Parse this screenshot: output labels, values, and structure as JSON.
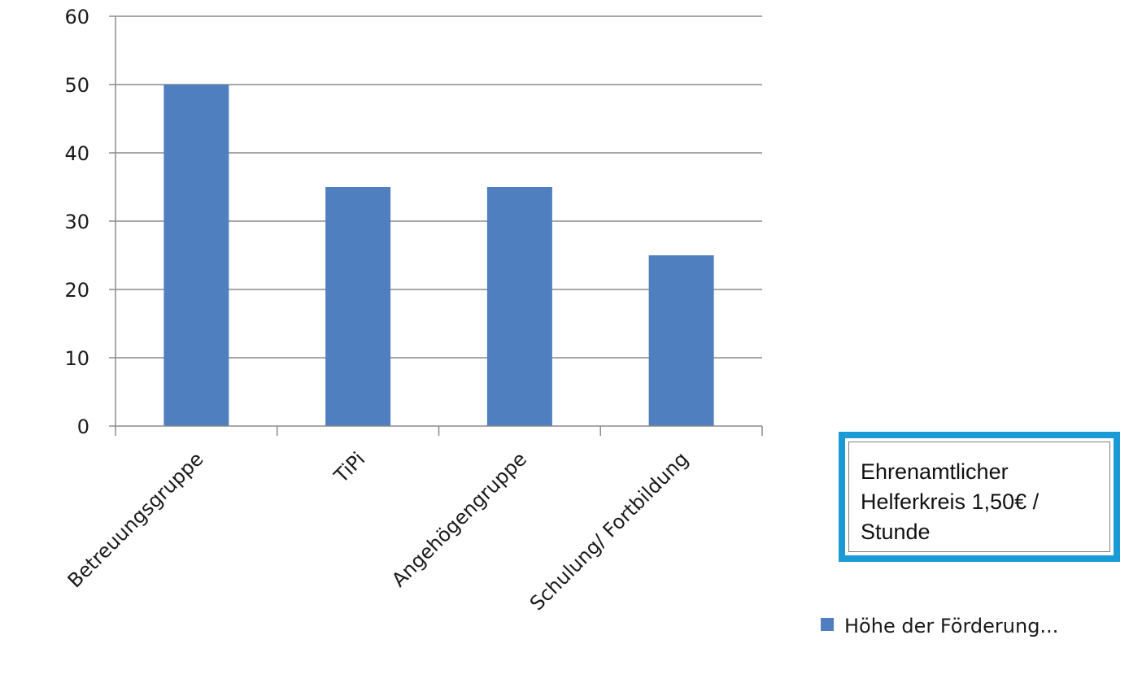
{
  "chart_data": {
    "type": "bar",
    "categories": [
      "Betreuungsgruppe",
      "TiPi",
      "Angehögengruppe",
      "Schulung/ Fortbildung"
    ],
    "series": [
      {
        "name": "Höhe der Förderung...",
        "values": [
          50,
          35,
          35,
          25
        ],
        "color": "#4f7fbf"
      }
    ],
    "yticks": [
      "0",
      "10",
      "20",
      "30",
      "40",
      "50",
      "60"
    ],
    "ylim": [
      0,
      60
    ],
    "grid": true,
    "legend_placement": "bottom-right",
    "annotation": "Ehrenamtlicher\nHelferkreis 1,50€ /\nStunde",
    "annotation_border_color": "#1a9bd6",
    "gridline_color": "#8c8c8c"
  }
}
